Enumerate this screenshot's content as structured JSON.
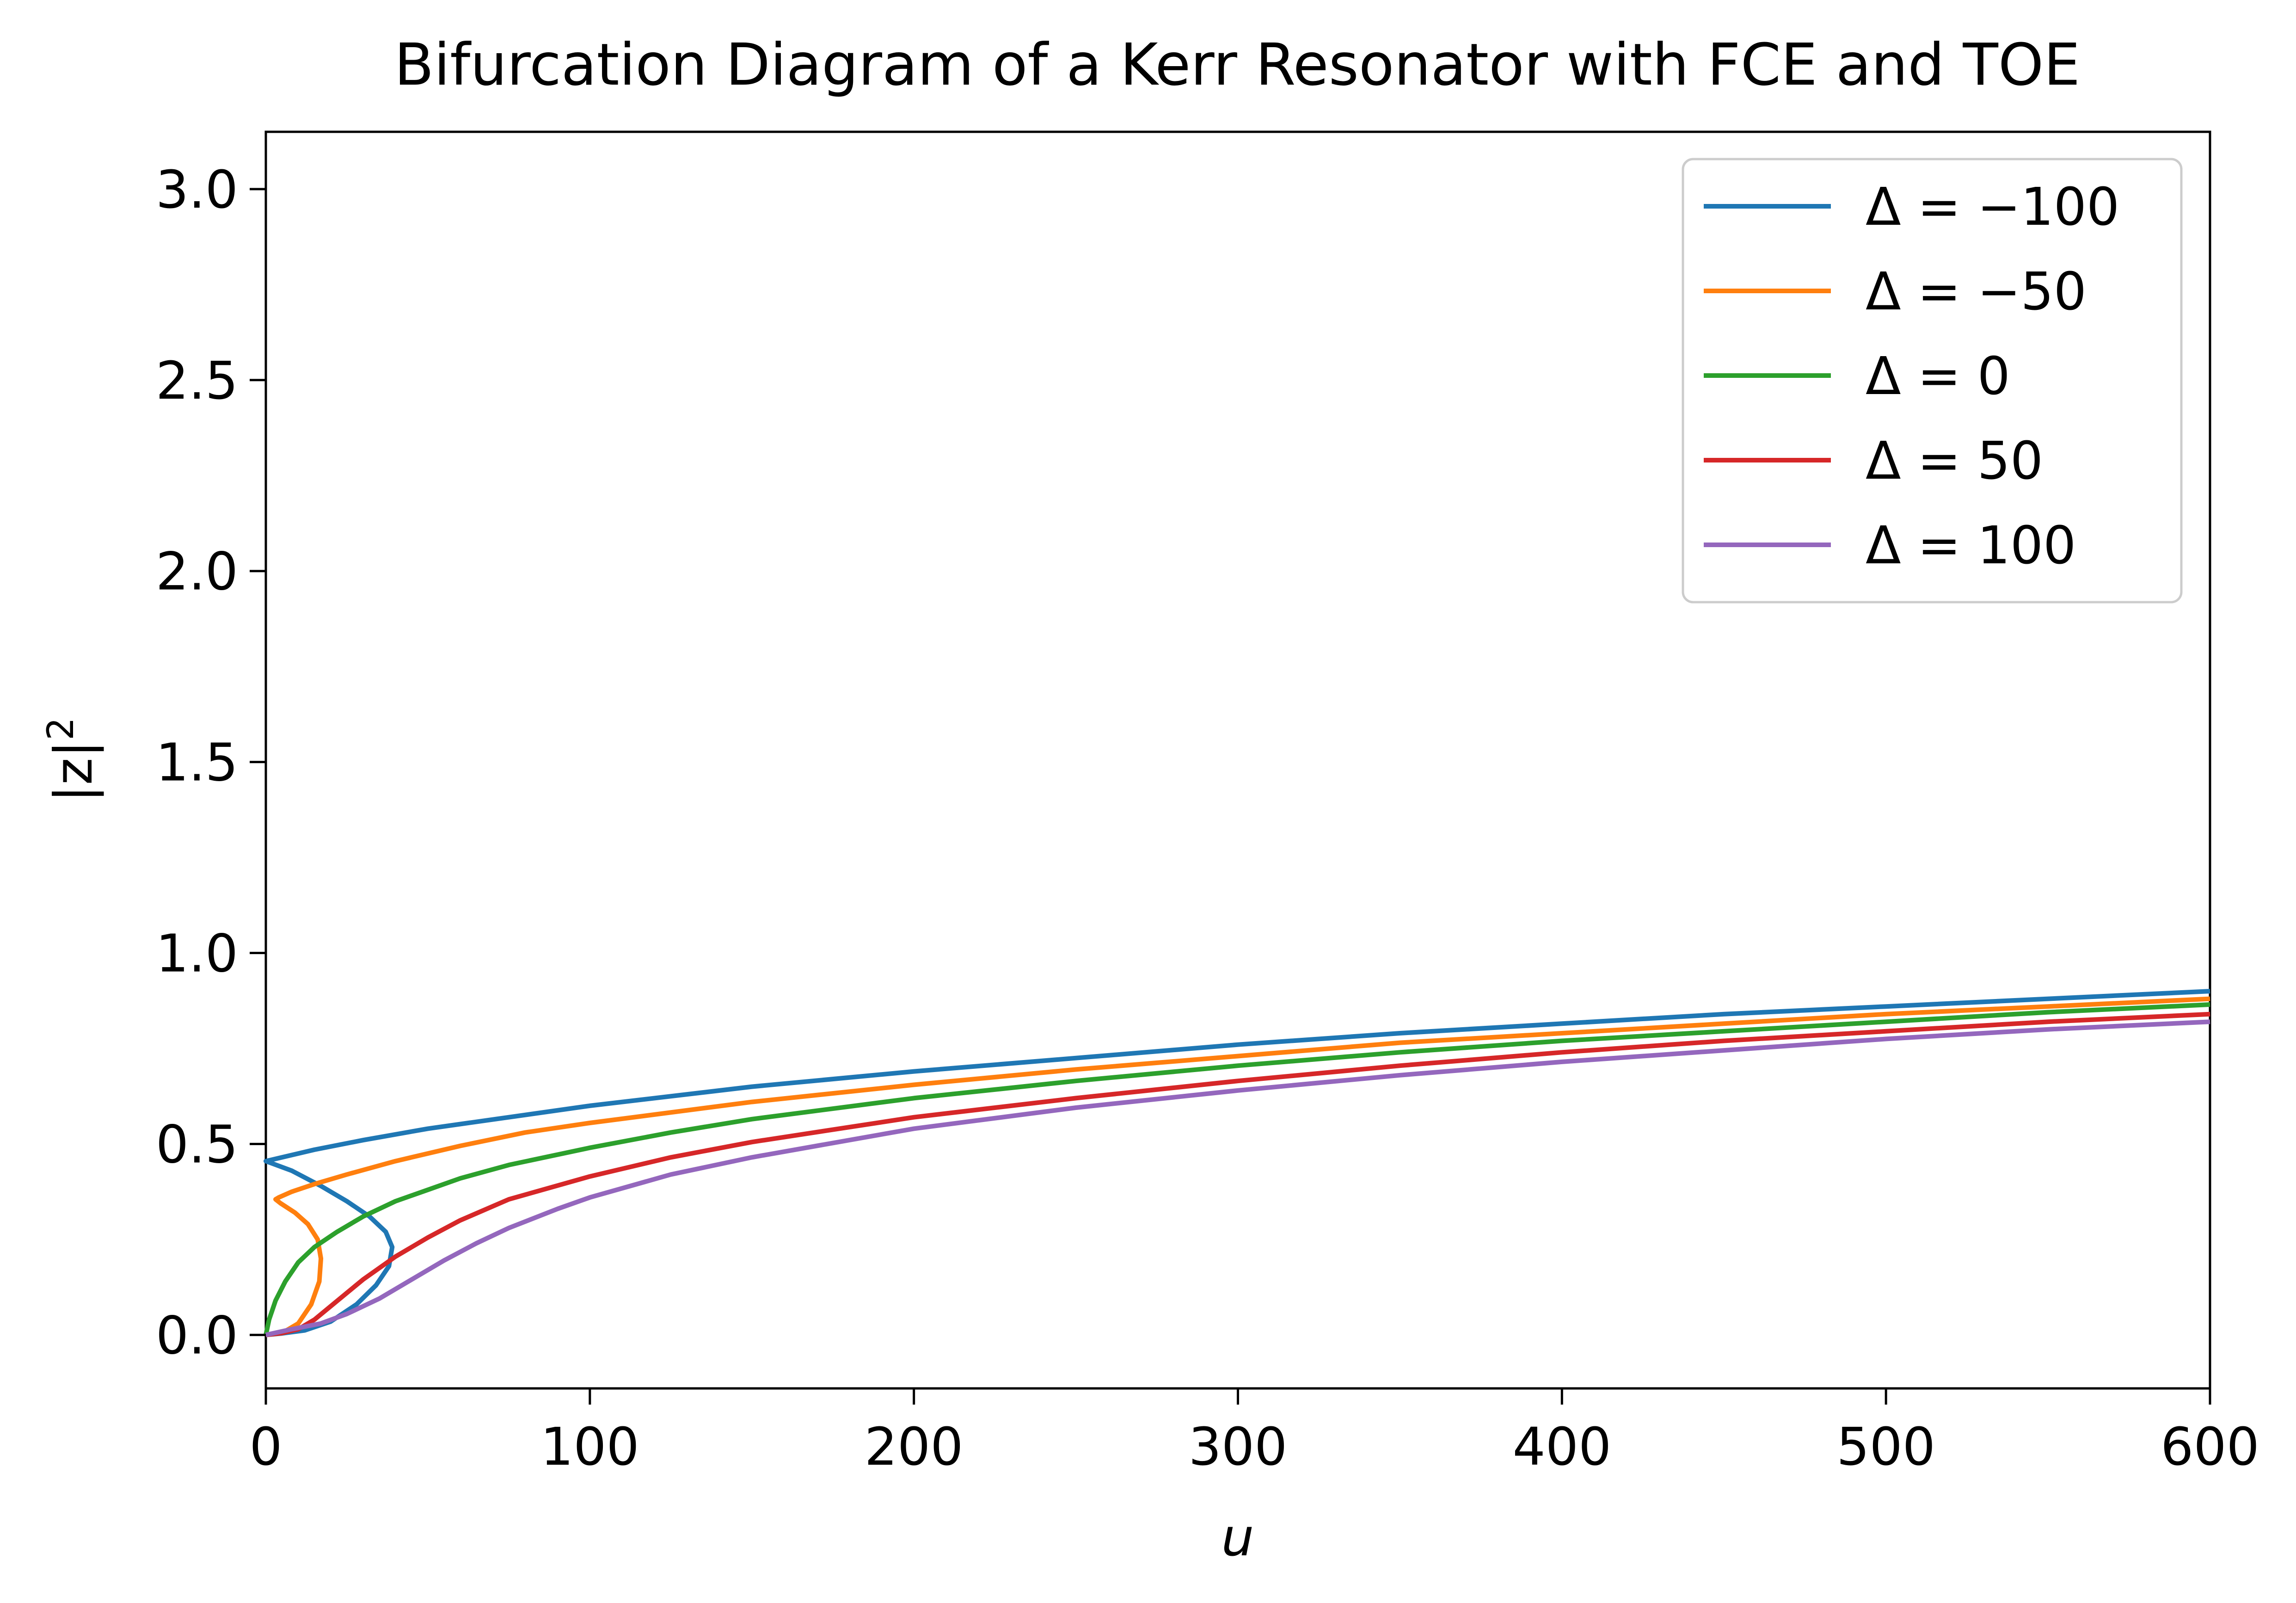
{
  "chart_data": {
    "type": "line",
    "title": "Bifurcation Diagram of a Kerr Resonator with FCE and TOE",
    "xlabel": "u",
    "ylabel": "|z|",
    "ylabel_superscript": "2",
    "xlim": [
      0,
      600
    ],
    "ylim": [
      -0.14,
      3.15
    ],
    "x_ticks": [
      0,
      100,
      200,
      300,
      400,
      500,
      600
    ],
    "x_tick_labels": [
      "0",
      "100",
      "200",
      "300",
      "400",
      "500",
      "600"
    ],
    "y_ticks": [
      0.0,
      0.5,
      1.0,
      1.5,
      2.0,
      2.5,
      3.0
    ],
    "y_tick_labels": [
      "0.0",
      "0.5",
      "1.0",
      "1.5",
      "2.0",
      "2.5",
      "3.0"
    ],
    "grid": false,
    "legend_position": "top-right",
    "series": [
      {
        "name": "Δ = −100",
        "color": "#1f77b4",
        "points": [
          [
            0,
            0
          ],
          [
            5,
            0.004
          ],
          [
            12,
            0.012
          ],
          [
            20,
            0.035
          ],
          [
            28,
            0.08
          ],
          [
            34,
            0.13
          ],
          [
            38,
            0.18
          ],
          [
            39,
            0.23
          ],
          [
            37,
            0.27
          ],
          [
            32,
            0.31
          ],
          [
            25,
            0.35
          ],
          [
            17,
            0.39
          ],
          [
            8,
            0.43
          ],
          [
            0,
            0.455
          ],
          [
            5,
            0.465
          ],
          [
            15,
            0.485
          ],
          [
            30,
            0.51
          ],
          [
            50,
            0.54
          ],
          [
            75,
            0.57
          ],
          [
            100,
            0.6
          ],
          [
            150,
            0.65
          ],
          [
            200,
            0.69
          ],
          [
            250,
            0.725
          ],
          [
            300,
            0.76
          ],
          [
            350,
            0.79
          ],
          [
            400,
            0.815
          ],
          [
            450,
            0.84
          ],
          [
            500,
            0.86
          ],
          [
            550,
            0.88
          ],
          [
            600,
            0.9
          ]
        ]
      },
      {
        "name": "Δ = −50",
        "color": "#ff7f0e",
        "points": [
          [
            0,
            0
          ],
          [
            5,
            0.005
          ],
          [
            10,
            0.03
          ],
          [
            14,
            0.08
          ],
          [
            16.5,
            0.14
          ],
          [
            17,
            0.2
          ],
          [
            16,
            0.25
          ],
          [
            13,
            0.29
          ],
          [
            9,
            0.32
          ],
          [
            4.5,
            0.345
          ],
          [
            3,
            0.355
          ],
          [
            4,
            0.36
          ],
          [
            8,
            0.375
          ],
          [
            15,
            0.395
          ],
          [
            25,
            0.42
          ],
          [
            40,
            0.455
          ],
          [
            60,
            0.495
          ],
          [
            80,
            0.53
          ],
          [
            100,
            0.555
          ],
          [
            150,
            0.61
          ],
          [
            200,
            0.655
          ],
          [
            250,
            0.695
          ],
          [
            300,
            0.73
          ],
          [
            350,
            0.765
          ],
          [
            400,
            0.79
          ],
          [
            450,
            0.815
          ],
          [
            500,
            0.84
          ],
          [
            550,
            0.86
          ],
          [
            600,
            0.88
          ]
        ]
      },
      {
        "name": "Δ = 0",
        "color": "#2ca02c",
        "points": [
          [
            0,
            0
          ],
          [
            1,
            0.04
          ],
          [
            3,
            0.09
          ],
          [
            6,
            0.14
          ],
          [
            10,
            0.19
          ],
          [
            15,
            0.23
          ],
          [
            22,
            0.27
          ],
          [
            30,
            0.31
          ],
          [
            40,
            0.35
          ],
          [
            50,
            0.38
          ],
          [
            60,
            0.41
          ],
          [
            75,
            0.445
          ],
          [
            100,
            0.49
          ],
          [
            125,
            0.53
          ],
          [
            150,
            0.565
          ],
          [
            200,
            0.62
          ],
          [
            250,
            0.665
          ],
          [
            300,
            0.705
          ],
          [
            350,
            0.74
          ],
          [
            400,
            0.77
          ],
          [
            450,
            0.795
          ],
          [
            500,
            0.82
          ],
          [
            550,
            0.845
          ],
          [
            600,
            0.865
          ]
        ]
      },
      {
        "name": "Δ = 50",
        "color": "#d62728",
        "points": [
          [
            0,
            0
          ],
          [
            5,
            0.005
          ],
          [
            10,
            0.015
          ],
          [
            15,
            0.04
          ],
          [
            20,
            0.075
          ],
          [
            25,
            0.11
          ],
          [
            30,
            0.145
          ],
          [
            40,
            0.205
          ],
          [
            50,
            0.255
          ],
          [
            60,
            0.3
          ],
          [
            75,
            0.355
          ],
          [
            100,
            0.415
          ],
          [
            125,
            0.465
          ],
          [
            150,
            0.505
          ],
          [
            200,
            0.57
          ],
          [
            250,
            0.62
          ],
          [
            300,
            0.665
          ],
          [
            350,
            0.705
          ],
          [
            400,
            0.74
          ],
          [
            450,
            0.77
          ],
          [
            500,
            0.795
          ],
          [
            550,
            0.82
          ],
          [
            600,
            0.84
          ]
        ]
      },
      {
        "name": "Δ = 100",
        "color": "#9467bd",
        "points": [
          [
            0,
            0
          ],
          [
            8,
            0.015
          ],
          [
            17,
            0.03
          ],
          [
            25,
            0.055
          ],
          [
            35,
            0.095
          ],
          [
            45,
            0.145
          ],
          [
            55,
            0.195
          ],
          [
            65,
            0.24
          ],
          [
            75,
            0.28
          ],
          [
            90,
            0.33
          ],
          [
            100,
            0.36
          ],
          [
            125,
            0.42
          ],
          [
            150,
            0.465
          ],
          [
            200,
            0.54
          ],
          [
            250,
            0.595
          ],
          [
            300,
            0.64
          ],
          [
            350,
            0.68
          ],
          [
            400,
            0.715
          ],
          [
            450,
            0.745
          ],
          [
            500,
            0.775
          ],
          [
            550,
            0.8
          ],
          [
            600,
            0.82
          ]
        ]
      }
    ]
  }
}
